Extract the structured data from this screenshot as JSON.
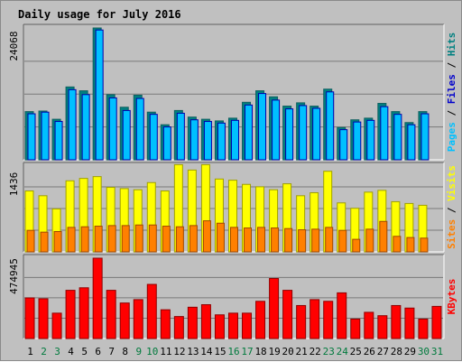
{
  "chart_data": {
    "type": "bar",
    "title": "Daily usage for July 2016",
    "days": [
      "1",
      "2",
      "3",
      "4",
      "5",
      "6",
      "7",
      "8",
      "9",
      "10",
      "11",
      "12",
      "13",
      "14",
      "15",
      "16",
      "17",
      "18",
      "19",
      "20",
      "21",
      "22",
      "23",
      "24",
      "25",
      "26",
      "27",
      "28",
      "29",
      "30",
      "31"
    ],
    "weekend_days": [
      2,
      3,
      9,
      10,
      16,
      17,
      23,
      24,
      30,
      31
    ],
    "colors": {
      "title": "#0000b0",
      "day_weekday": "#000000",
      "day_weekend": "#007a3d",
      "pages": "#00c0ff",
      "files": "#0000cc",
      "hits": "#008080",
      "visits": "#ffff00",
      "sites": "#ff8000",
      "kbytes": "#ff0000",
      "panel": "#c0c0c0",
      "plot": "#c0c0c0",
      "grid": "#7a7a7a"
    },
    "panels": {
      "requests": {
        "max_label": "24068",
        "ylim": [
          0,
          24068
        ],
        "legend": [
          {
            "label": "Hits",
            "sep": "/",
            "color": "#008080"
          },
          {
            "label": "Files",
            "sep": "/",
            "color": "#0000cc"
          },
          {
            "label": "Pages",
            "sep": "",
            "color": "#00c0ff"
          }
        ],
        "series": [
          {
            "name": "Hits",
            "values": [
              8800,
              8900,
              7400,
              13300,
              12600,
              24068,
              11900,
              9600,
              11800,
              8700,
              6400,
              9000,
              7800,
              7400,
              7100,
              7600,
              10500,
              12600,
              11500,
              9800,
              10400,
              9800,
              12900,
              5900,
              7300,
              7600,
              10300,
              8800,
              6800,
              8800,
              0
            ]
          },
          {
            "name": "Pages",
            "values": [
              8400,
              8700,
              7000,
              12800,
              11900,
              23700,
              11300,
              9000,
              11200,
              8300,
              6000,
              8500,
              7300,
              7000,
              6700,
              7200,
              10000,
              12100,
              10900,
              9300,
              9900,
              9400,
              12400,
              5500,
              6900,
              7200,
              9700,
              8300,
              6400,
              8400,
              0
            ]
          }
        ]
      },
      "visits": {
        "max_label": "1436",
        "ylim": [
          0,
          1436
        ],
        "legend": [
          {
            "label": "Visits",
            "sep": "/",
            "color": "#ffff00"
          },
          {
            "label": "Sites",
            "sep": "",
            "color": "#ff8000"
          }
        ],
        "series": [
          {
            "name": "Visits",
            "values": [
              1020,
              940,
              720,
              1190,
              1230,
              1260,
              1080,
              1060,
              1040,
              1160,
              1020,
              1460,
              1370,
              1460,
              1220,
              1200,
              1130,
              1090,
              1040,
              1140,
              940,
              990,
              1350,
              820,
              730,
              1000,
              1030,
              840,
              810,
              780,
              0
            ]
          },
          {
            "name": "Sites",
            "values": [
              360,
              330,
              340,
              410,
              420,
              430,
              440,
              440,
              450,
              450,
              430,
              420,
              440,
              520,
              480,
              410,
              400,
              410,
              400,
              390,
              370,
              380,
              410,
              360,
              210,
              380,
              510,
              260,
              240,
              230,
              0
            ]
          }
        ]
      },
      "kbytes": {
        "max_label": "474945",
        "ylim": [
          0,
          474945
        ],
        "legend": [
          {
            "label": "KBytes",
            "sep": "",
            "color": "#ff0000"
          }
        ],
        "series": [
          {
            "name": "KBytes",
            "values": [
              240000,
              235000,
              150000,
              285000,
              300000,
              474945,
              285000,
              210000,
              230000,
              320000,
              170000,
              130000,
              185000,
              200000,
              140000,
              150000,
              150000,
              220000,
              355000,
              285000,
              195000,
              230000,
              220000,
              270000,
              115000,
              155000,
              135000,
              195000,
              180000,
              115000,
              190000
            ]
          }
        ]
      }
    }
  }
}
